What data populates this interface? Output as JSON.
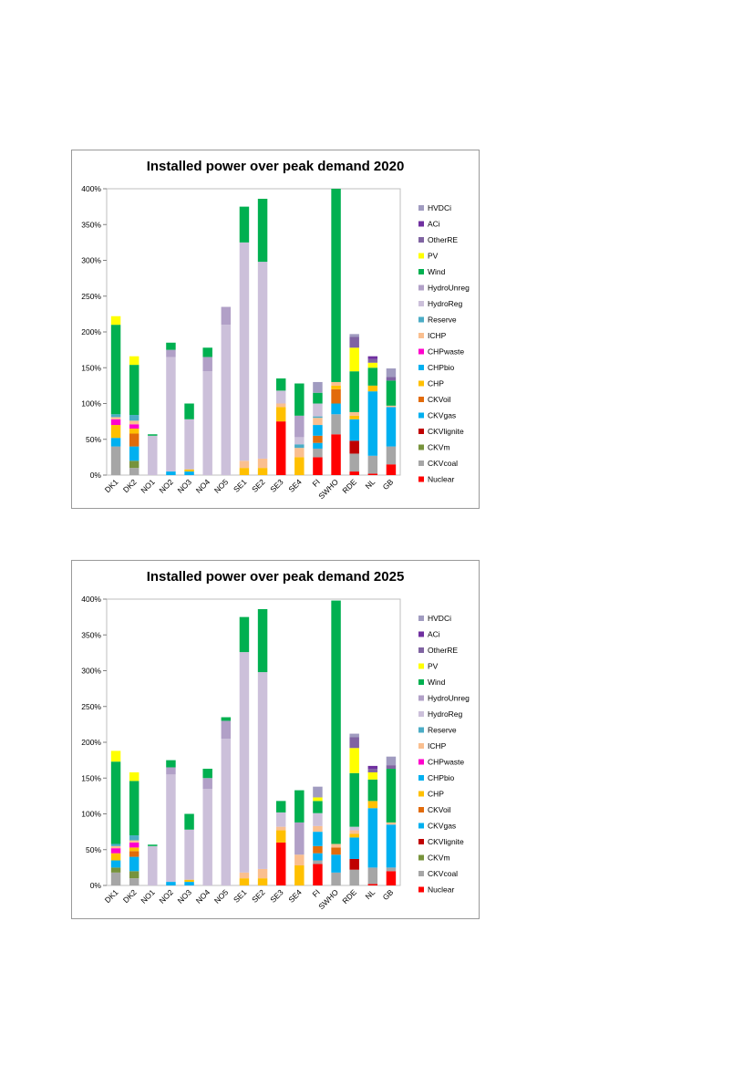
{
  "colors": {
    "Nuclear": "#ff0000",
    "CKVcoal": "#a6a6a6",
    "CKVm": "#77933c",
    "CKVlignite": "#c00000",
    "CKVgas": "#00b0f0",
    "CKVoil": "#e26b0a",
    "CHP": "#ffc000",
    "CHPbio": "#00b0f0",
    "CHPwaste": "#ff00cc",
    "ICHP": "#fabf8f",
    "Reserve": "#4bacc6",
    "HydroReg": "#ccc0da",
    "HydroUnreg": "#b1a0c7",
    "Wind": "#00b050",
    "PV": "#ffff00",
    "OtherRE": "#8064a2",
    "ACi": "#7030a0",
    "HVDCi": "#a09bc0"
  },
  "chart_data": [
    {
      "type": "bar",
      "stacked": true,
      "title": "Installed power over peak demand 2020",
      "xlabel": "",
      "ylabel": "",
      "ylim": [
        0,
        400
      ],
      "yticks": [
        "0%",
        "50%",
        "100%",
        "150%",
        "200%",
        "250%",
        "300%",
        "350%",
        "400%"
      ],
      "legend_position": "right",
      "categories": [
        "DK1",
        "DK2",
        "NO1",
        "NO2",
        "NO3",
        "NO4",
        "NO5",
        "SE1",
        "SE2",
        "SE3",
        "SE4",
        "FI",
        "SWHO",
        "RDE",
        "NL",
        "GB"
      ],
      "series": [
        {
          "name": "Nuclear",
          "values": [
            0,
            0,
            0,
            0,
            0,
            0,
            0,
            0,
            0,
            75,
            0,
            25,
            57,
            5,
            2,
            15
          ]
        },
        {
          "name": "CKVcoal",
          "values": [
            40,
            10,
            0,
            0,
            0,
            0,
            0,
            0,
            0,
            0,
            0,
            12,
            28,
            25,
            25,
            25
          ]
        },
        {
          "name": "CKVm",
          "values": [
            0,
            10,
            0,
            0,
            0,
            0,
            0,
            0,
            0,
            0,
            0,
            0,
            0,
            0,
            0,
            0
          ]
        },
        {
          "name": "CKVlignite",
          "values": [
            0,
            0,
            0,
            0,
            0,
            0,
            0,
            0,
            0,
            0,
            0,
            0,
            0,
            18,
            0,
            0
          ]
        },
        {
          "name": "CKVgas",
          "values": [
            12,
            20,
            0,
            5,
            5,
            0,
            0,
            0,
            0,
            0,
            0,
            8,
            15,
            30,
            90,
            55
          ]
        },
        {
          "name": "CKVoil",
          "values": [
            0,
            18,
            0,
            0,
            0,
            0,
            0,
            0,
            0,
            0,
            0,
            10,
            20,
            0,
            0,
            0
          ]
        },
        {
          "name": "CHP",
          "values": [
            18,
            7,
            0,
            0,
            3,
            0,
            0,
            10,
            10,
            20,
            25,
            0,
            5,
            5,
            8,
            0
          ]
        },
        {
          "name": "CHPbio",
          "values": [
            0,
            0,
            0,
            0,
            0,
            0,
            0,
            0,
            0,
            0,
            0,
            15,
            0,
            0,
            0,
            0
          ]
        },
        {
          "name": "CHPwaste",
          "values": [
            8,
            6,
            0,
            0,
            0,
            0,
            0,
            0,
            0,
            0,
            0,
            0,
            0,
            0,
            0,
            0
          ]
        },
        {
          "name": "ICHP",
          "values": [
            3,
            5,
            0,
            0,
            0,
            0,
            0,
            10,
            13,
            5,
            13,
            10,
            5,
            5,
            0,
            2
          ]
        },
        {
          "name": "Reserve",
          "values": [
            4,
            8,
            0,
            0,
            0,
            0,
            0,
            0,
            0,
            0,
            5,
            2,
            0,
            0,
            0,
            0
          ]
        },
        {
          "name": "HydroReg",
          "values": [
            0,
            0,
            55,
            160,
            70,
            145,
            210,
            305,
            275,
            18,
            10,
            18,
            0,
            0,
            0,
            0
          ]
        },
        {
          "name": "HydroUnreg",
          "values": [
            0,
            0,
            0,
            10,
            0,
            20,
            25,
            0,
            0,
            0,
            30,
            0,
            0,
            0,
            0,
            0
          ]
        },
        {
          "name": "Wind",
          "values": [
            125,
            70,
            2,
            10,
            22,
            13,
            0,
            50,
            88,
            17,
            45,
            15,
            270,
            57,
            25,
            35
          ]
        },
        {
          "name": "PV",
          "values": [
            12,
            12,
            0,
            0,
            0,
            0,
            0,
            0,
            0,
            0,
            0,
            0,
            0,
            33,
            7,
            0
          ]
        },
        {
          "name": "OtherRE",
          "values": [
            0,
            0,
            0,
            0,
            0,
            0,
            0,
            0,
            0,
            0,
            0,
            0,
            0,
            15,
            5,
            5
          ]
        },
        {
          "name": "ACi",
          "values": [
            0,
            0,
            0,
            0,
            0,
            0,
            0,
            0,
            0,
            0,
            0,
            0,
            0,
            0,
            4,
            0
          ]
        },
        {
          "name": "HVDCi",
          "values": [
            0,
            0,
            0,
            0,
            0,
            0,
            0,
            0,
            0,
            0,
            0,
            15,
            0,
            4,
            0,
            12
          ]
        }
      ]
    },
    {
      "type": "bar",
      "stacked": true,
      "title": "Installed power over peak demand 2025",
      "xlabel": "",
      "ylabel": "",
      "ylim": [
        0,
        400
      ],
      "yticks": [
        "0%",
        "50%",
        "100%",
        "150%",
        "200%",
        "250%",
        "300%",
        "350%",
        "400%"
      ],
      "legend_position": "right",
      "categories": [
        "DK1",
        "DK2",
        "NO1",
        "NO2",
        "NO3",
        "NO4",
        "NO5",
        "SE1",
        "SE2",
        "SE3",
        "SE4",
        "FI",
        "SWHO",
        "RDE",
        "NL",
        "GB"
      ],
      "series": [
        {
          "name": "Nuclear",
          "values": [
            0,
            0,
            0,
            0,
            0,
            0,
            0,
            0,
            0,
            60,
            0,
            30,
            0,
            0,
            2,
            20
          ]
        },
        {
          "name": "CKVcoal",
          "values": [
            18,
            10,
            0,
            0,
            0,
            0,
            0,
            0,
            0,
            0,
            0,
            5,
            18,
            22,
            23,
            5
          ]
        },
        {
          "name": "CKVm",
          "values": [
            7,
            10,
            0,
            0,
            0,
            0,
            0,
            0,
            0,
            0,
            0,
            0,
            0,
            0,
            0,
            0
          ]
        },
        {
          "name": "CKVlignite",
          "values": [
            0,
            0,
            0,
            0,
            0,
            0,
            0,
            0,
            0,
            0,
            0,
            0,
            0,
            15,
            0,
            0
          ]
        },
        {
          "name": "CKVgas",
          "values": [
            10,
            20,
            0,
            5,
            5,
            0,
            0,
            0,
            0,
            0,
            0,
            10,
            25,
            30,
            83,
            60
          ]
        },
        {
          "name": "CKVoil",
          "values": [
            0,
            8,
            0,
            0,
            0,
            0,
            0,
            0,
            0,
            0,
            0,
            10,
            10,
            0,
            0,
            0
          ]
        },
        {
          "name": "CHP",
          "values": [
            10,
            5,
            0,
            0,
            3,
            0,
            0,
            10,
            10,
            17,
            28,
            0,
            0,
            5,
            10,
            0
          ]
        },
        {
          "name": "CHPbio",
          "values": [
            0,
            0,
            0,
            0,
            0,
            0,
            0,
            0,
            0,
            0,
            0,
            20,
            0,
            0,
            0,
            0
          ]
        },
        {
          "name": "CHPwaste",
          "values": [
            7,
            7,
            0,
            0,
            0,
            0,
            0,
            0,
            0,
            0,
            0,
            0,
            0,
            0,
            0,
            0
          ]
        },
        {
          "name": "ICHP",
          "values": [
            3,
            3,
            0,
            0,
            0,
            0,
            0,
            8,
            13,
            5,
            15,
            8,
            5,
            5,
            0,
            3
          ]
        },
        {
          "name": "Reserve",
          "values": [
            3,
            7,
            0,
            0,
            0,
            0,
            0,
            0,
            0,
            0,
            0,
            0,
            0,
            0,
            0,
            0
          ]
        },
        {
          "name": "HydroReg",
          "values": [
            0,
            0,
            55,
            150,
            70,
            135,
            205,
            308,
            275,
            20,
            0,
            18,
            0,
            5,
            0,
            0
          ]
        },
        {
          "name": "HydroUnreg",
          "values": [
            0,
            0,
            0,
            10,
            0,
            15,
            25,
            0,
            0,
            0,
            45,
            0,
            0,
            0,
            0,
            0
          ]
        },
        {
          "name": "Wind",
          "values": [
            115,
            76,
            2,
            10,
            22,
            13,
            5,
            49,
            88,
            16,
            45,
            17,
            340,
            75,
            30,
            75
          ]
        },
        {
          "name": "PV",
          "values": [
            15,
            12,
            0,
            0,
            0,
            0,
            0,
            0,
            0,
            0,
            0,
            5,
            0,
            35,
            10,
            0
          ]
        },
        {
          "name": "OtherRE",
          "values": [
            0,
            0,
            0,
            0,
            0,
            0,
            0,
            0,
            0,
            0,
            0,
            0,
            0,
            15,
            5,
            5
          ]
        },
        {
          "name": "ACi",
          "values": [
            0,
            0,
            0,
            0,
            0,
            0,
            0,
            0,
            0,
            0,
            0,
            0,
            0,
            0,
            4,
            0
          ]
        },
        {
          "name": "HVDCi",
          "values": [
            0,
            0,
            0,
            0,
            0,
            0,
            0,
            0,
            0,
            0,
            0,
            15,
            0,
            5,
            0,
            12
          ]
        }
      ]
    }
  ]
}
